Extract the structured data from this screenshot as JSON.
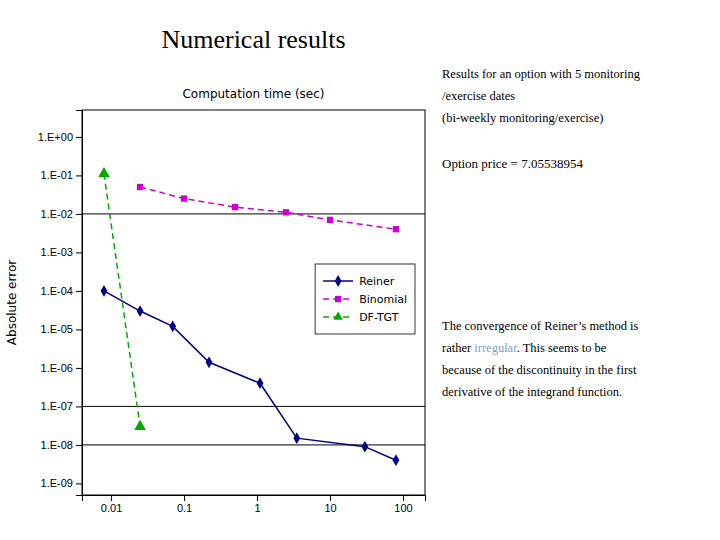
{
  "chart_data": {
    "type": "line",
    "title": "Numerical results",
    "x_label": "Computation time (sec)",
    "y_label": "Absolute error",
    "log": true,
    "grid": false,
    "legend": "right",
    "xlim": [
      0.004,
      200
    ],
    "ylim": [
      5e-10,
      5.0
    ],
    "xticks": [
      0.01,
      0.1,
      1,
      10,
      100
    ],
    "yticks": [
      {
        "value": 1,
        "label": "1.E+00"
      },
      {
        "value": 0.1,
        "label": "1.E-01"
      },
      {
        "value": 0.01,
        "label": "1.E-02"
      },
      {
        "value": 0.001,
        "label": "1.E-03"
      },
      {
        "value": 0.0001,
        "label": "1.E-04"
      },
      {
        "value": 1e-05,
        "label": "1.E-05"
      },
      {
        "value": 1e-06,
        "label": "1.E-06"
      },
      {
        "value": 1e-07,
        "label": "1.E-07"
      },
      {
        "value": 1e-08,
        "label": "1.E-08"
      },
      {
        "value": 1e-09,
        "label": "1.E-09"
      }
    ],
    "series": [
      {
        "name": "Reiner",
        "color": "#000080",
        "marker": "diamond",
        "line_style": "solid",
        "x": [
          0.008,
          0.025,
          0.07,
          0.22,
          1.1,
          3.5,
          30,
          80
        ],
        "values": [
          0.0001,
          3e-05,
          1.2e-05,
          1.4e-06,
          4e-07,
          1.5e-08,
          9e-09,
          4e-09
        ]
      },
      {
        "name": "Binomial",
        "color": "#cc00cc",
        "marker": "square",
        "line_style": "dashed",
        "x": [
          0.025,
          0.1,
          0.5,
          2.5,
          10,
          80
        ],
        "values": [
          0.05,
          0.025,
          0.015,
          0.011,
          0.007,
          0.004
        ]
      },
      {
        "name": "DF-TGT",
        "color": "#00aa00",
        "marker": "triangle",
        "line_style": "dashed",
        "x": [
          0.008,
          0.025
        ],
        "values": [
          0.11,
          3e-08
        ]
      }
    ],
    "reference_lines": [
      0.01,
      1e-07,
      1e-08
    ],
    "annotations": [
      [
        "Results for an option with 5 monitoring",
        "/exercise dates",
        "(bi-weekly monitoring/exercise)"
      ],
      [
        "Option price = 7.05538954"
      ],
      [
        "The convergence of Reiner’s method is",
        {
          "segments": [
            {
              "text": "rather "
            },
            {
              "text": "irregular",
              "color": "#7b9fc7"
            },
            {
              "text": ". This seems to be"
            }
          ]
        },
        "because of the discontinuity in the first",
        "derivative of the integrand function."
      ]
    ]
  }
}
